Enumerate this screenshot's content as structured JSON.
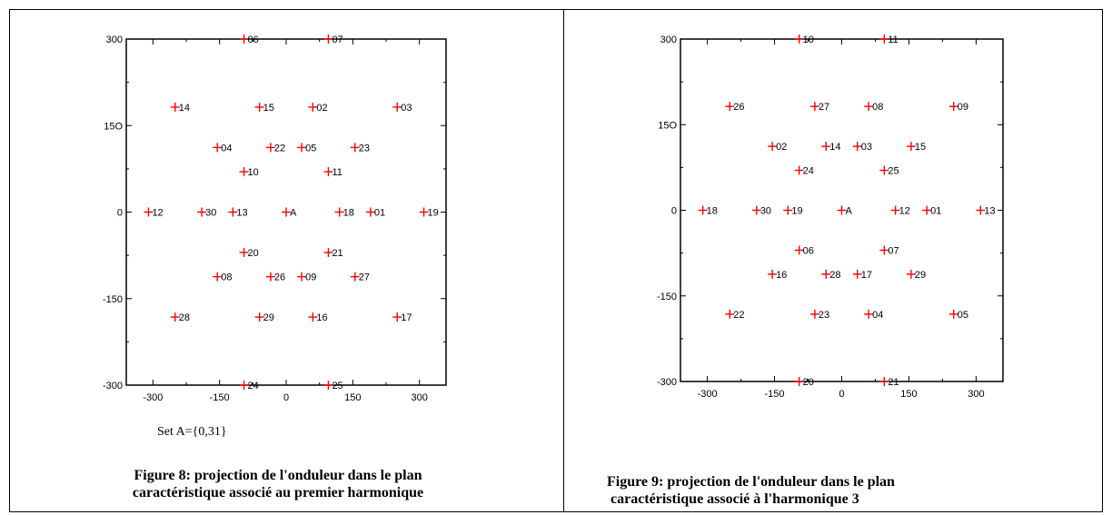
{
  "chart_data": [
    {
      "type": "scatter",
      "title": "",
      "xlabel": "",
      "ylabel": "",
      "xlim": [
        -360,
        360
      ],
      "ylim": [
        -300,
        300
      ],
      "x_ticks": [
        "-300",
        "-150",
        "0",
        "150",
        "300"
      ],
      "y_ticks": [
        "300",
        "15O",
        "0",
        "-150",
        "-300"
      ],
      "marker_color": "#ff0000",
      "points": [
        {
          "label": "06",
          "x": -95,
          "y": 300
        },
        {
          "label": "07",
          "x": 95,
          "y": 300
        },
        {
          "label": "14",
          "x": -250,
          "y": 182
        },
        {
          "label": "15",
          "x": -60,
          "y": 182
        },
        {
          "label": "02",
          "x": 60,
          "y": 182
        },
        {
          "label": "03",
          "x": 250,
          "y": 182
        },
        {
          "label": "04",
          "x": -155,
          "y": 112
        },
        {
          "label": "22",
          "x": -35,
          "y": 112
        },
        {
          "label": "05",
          "x": 35,
          "y": 112
        },
        {
          "label": "23",
          "x": 155,
          "y": 112
        },
        {
          "label": "10",
          "x": -95,
          "y": 70
        },
        {
          "label": "11",
          "x": 95,
          "y": 70
        },
        {
          "label": "12",
          "x": -310,
          "y": 0
        },
        {
          "label": "30",
          "x": -190,
          "y": 0
        },
        {
          "label": "13",
          "x": -120,
          "y": 0
        },
        {
          "label": "A",
          "x": 0,
          "y": 0
        },
        {
          "label": "18",
          "x": 120,
          "y": 0
        },
        {
          "label": "01",
          "x": 190,
          "y": 0
        },
        {
          "label": "19",
          "x": 310,
          "y": 0
        },
        {
          "label": "20",
          "x": -95,
          "y": -70
        },
        {
          "label": "21",
          "x": 95,
          "y": -70
        },
        {
          "label": "08",
          "x": -155,
          "y": -112
        },
        {
          "label": "26",
          "x": -35,
          "y": -112
        },
        {
          "label": "09",
          "x": 35,
          "y": -112
        },
        {
          "label": "27",
          "x": 155,
          "y": -112
        },
        {
          "label": "28",
          "x": -250,
          "y": -182
        },
        {
          "label": "29",
          "x": -60,
          "y": -182
        },
        {
          "label": "16",
          "x": 60,
          "y": -182
        },
        {
          "label": "17",
          "x": 250,
          "y": -182
        },
        {
          "label": "24",
          "x": -95,
          "y": -300
        },
        {
          "label": "25",
          "x": 95,
          "y": -300
        }
      ]
    },
    {
      "type": "scatter",
      "title": "",
      "xlabel": "",
      "ylabel": "",
      "xlim": [
        -360,
        360
      ],
      "ylim": [
        -300,
        300
      ],
      "x_ticks": [
        "-300",
        "-150",
        "0",
        "150",
        "300"
      ],
      "y_ticks": [
        "300",
        "15O",
        "0",
        "-150",
        "-300"
      ],
      "marker_color": "#ff0000",
      "points": [
        {
          "label": "10",
          "x": -95,
          "y": 300
        },
        {
          "label": "11",
          "x": 95,
          "y": 300
        },
        {
          "label": "26",
          "x": -250,
          "y": 182
        },
        {
          "label": "27",
          "x": -60,
          "y": 182
        },
        {
          "label": "08",
          "x": 60,
          "y": 182
        },
        {
          "label": "09",
          "x": 250,
          "y": 182
        },
        {
          "label": "02",
          "x": -155,
          "y": 112
        },
        {
          "label": "14",
          "x": -35,
          "y": 112
        },
        {
          "label": "03",
          "x": 35,
          "y": 112
        },
        {
          "label": "15",
          "x": 155,
          "y": 112
        },
        {
          "label": "24",
          "x": -95,
          "y": 70
        },
        {
          "label": "25",
          "x": 95,
          "y": 70
        },
        {
          "label": "18",
          "x": -310,
          "y": 0
        },
        {
          "label": "30",
          "x": -190,
          "y": 0
        },
        {
          "label": "19",
          "x": -120,
          "y": 0
        },
        {
          "label": "A",
          "x": 0,
          "y": 0
        },
        {
          "label": "12",
          "x": 120,
          "y": 0
        },
        {
          "label": "01",
          "x": 190,
          "y": 0
        },
        {
          "label": "13",
          "x": 310,
          "y": 0
        },
        {
          "label": "06",
          "x": -95,
          "y": -70
        },
        {
          "label": "07",
          "x": 95,
          "y": -70
        },
        {
          "label": "16",
          "x": -155,
          "y": -112
        },
        {
          "label": "28",
          "x": -35,
          "y": -112
        },
        {
          "label": "17",
          "x": 35,
          "y": -112
        },
        {
          "label": "29",
          "x": 155,
          "y": -112
        },
        {
          "label": "22",
          "x": -250,
          "y": -182
        },
        {
          "label": "23",
          "x": -60,
          "y": -182
        },
        {
          "label": "04",
          "x": 60,
          "y": -182
        },
        {
          "label": "05",
          "x": 250,
          "y": -182
        },
        {
          "label": "20",
          "x": -95,
          "y": -300
        },
        {
          "label": "21",
          "x": 95,
          "y": -300
        }
      ]
    }
  ],
  "set_label": "Set A={0,31}",
  "captions": {
    "figure8_line1": "Figure 8: projection de l'onduleur dans le plan",
    "figure8_line2": "caractéristique associé au premier harmonique",
    "figure9_line1": "Figure 9: projection de l'onduleur dans le plan",
    "figure9_line2": " caractéristique associé à l'harmonique 3"
  }
}
